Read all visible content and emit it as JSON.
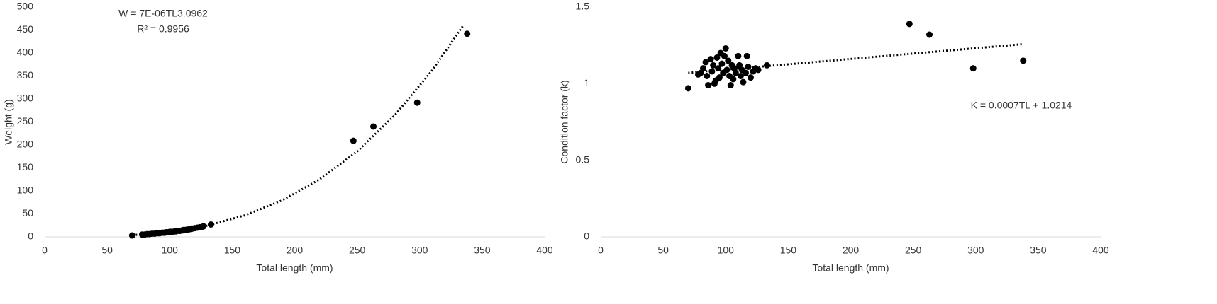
{
  "chart_data": [
    {
      "type": "scatter",
      "x_label": "Total length (mm)",
      "y_label": "Weight (g)",
      "annotations": [
        "W = 7E-06TL3.0962",
        "R² = 0.9956"
      ],
      "x": [
        70,
        78,
        80,
        82,
        84,
        86,
        88,
        90,
        91,
        92,
        94,
        95,
        96,
        97,
        98,
        100,
        101,
        102,
        104,
        105,
        106,
        108,
        110,
        111,
        112,
        114,
        115,
        117,
        118,
        120,
        122,
        124,
        126,
        127,
        133,
        247,
        263,
        298,
        338
      ],
      "values": [
        3,
        5,
        5,
        6,
        6,
        7,
        7,
        8,
        8,
        8,
        9,
        9,
        9,
        10,
        10,
        11,
        11,
        11,
        12,
        12,
        13,
        13,
        14,
        15,
        15,
        16,
        16,
        17,
        18,
        19,
        20,
        21,
        22,
        23,
        27,
        209,
        240,
        292,
        442
      ],
      "color": "#000000",
      "trendline": {
        "x": [
          70,
          100,
          130,
          160,
          190,
          220,
          250,
          280,
          310,
          335
        ],
        "values": [
          3.6,
          10.9,
          24.5,
          46.7,
          79.5,
          125.2,
          186.0,
          264.4,
          362.2,
          460.4
        ]
      },
      "xlim": [
        0,
        400
      ],
      "xticks": [
        0,
        50,
        100,
        150,
        200,
        250,
        300,
        350,
        400
      ],
      "ylim": [
        0,
        500
      ],
      "yticks": [
        0,
        50,
        100,
        150,
        200,
        250,
        300,
        350,
        400,
        450,
        500
      ],
      "grid": false
    },
    {
      "type": "scatter",
      "x_label": "Total length (mm)",
      "y_label": "Condition factor (k)",
      "annotations": [
        "K = 0.0007TL + 1.0214"
      ],
      "x": [
        70,
        78,
        80,
        82,
        84,
        85,
        86,
        88,
        89,
        90,
        91,
        92,
        93,
        94,
        95,
        96,
        97,
        98,
        99,
        100,
        101,
        102,
        103,
        104,
        105,
        106,
        107,
        108,
        110,
        111,
        112,
        113,
        114,
        116,
        117,
        118,
        120,
        122,
        124,
        126,
        133,
        247,
        263,
        298,
        338
      ],
      "values": [
        0.97,
        1.06,
        1.07,
        1.1,
        1.14,
        1.05,
        0.99,
        1.16,
        1.08,
        1.12,
        1.0,
        1.02,
        1.17,
        1.1,
        1.04,
        1.2,
        1.13,
        1.07,
        1.18,
        1.23,
        1.09,
        1.15,
        1.05,
        0.99,
        1.12,
        1.03,
        1.1,
        1.07,
        1.18,
        1.12,
        1.05,
        1.09,
        1.01,
        1.07,
        1.18,
        1.11,
        1.04,
        1.08,
        1.1,
        1.09,
        1.12,
        1.39,
        1.32,
        1.1,
        1.15
      ],
      "color": "#000000",
      "trendline": {
        "x": [
          70,
          338
        ],
        "values": [
          1.0704,
          1.258
        ]
      },
      "xlim": [
        0,
        400
      ],
      "xticks": [
        0,
        50,
        100,
        150,
        200,
        250,
        300,
        350,
        400
      ],
      "ylim": [
        0,
        1.5
      ],
      "yticks": [
        0,
        0.5,
        1,
        1.5
      ],
      "grid": false
    }
  ]
}
